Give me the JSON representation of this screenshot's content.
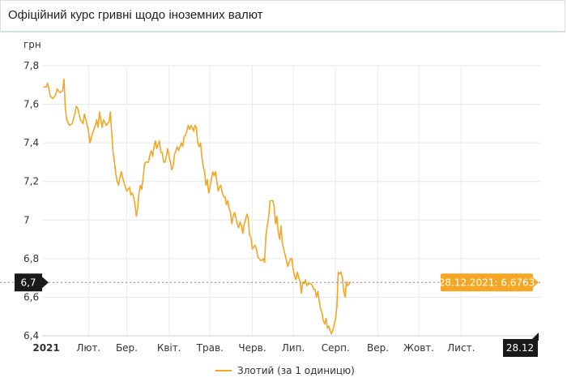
{
  "header": {
    "title": "Офіційний курс гривні щодо іноземних валют"
  },
  "colors": {
    "series": "#f5a623",
    "crosshair_label_bg": "#1a1a1a",
    "tooltip_bg": "#f5a623"
  },
  "chart_data": {
    "type": "line",
    "ylabel": "грн",
    "ylim": [
      6.4,
      7.8
    ],
    "yticks": [
      {
        "v": 7.8,
        "label": "7,8"
      },
      {
        "v": 7.6,
        "label": "7,6"
      },
      {
        "v": 7.4,
        "label": "7,4"
      },
      {
        "v": 7.2,
        "label": "7,2"
      },
      {
        "v": 7.0,
        "label": "7"
      },
      {
        "v": 6.8,
        "label": "6,8"
      },
      {
        "v": 6.6,
        "label": "6,6"
      },
      {
        "v": 6.4,
        "label": "6,4"
      }
    ],
    "xticks": [
      {
        "label": "2021",
        "day": 3,
        "bold": true
      },
      {
        "label": "Лют.",
        "day": 34
      },
      {
        "label": "Бер.",
        "day": 62
      },
      {
        "label": "Квіт.",
        "day": 93
      },
      {
        "label": "Трав.",
        "day": 123
      },
      {
        "label": "Черв.",
        "day": 154
      },
      {
        "label": "Лип.",
        "day": 184
      },
      {
        "label": "Серп.",
        "day": 215
      },
      {
        "label": "Вер.",
        "day": 246
      },
      {
        "label": "Жовт.",
        "day": 276
      },
      {
        "label": "Лист.",
        "day": 307
      }
    ],
    "x_end_day": 365,
    "grid": true,
    "legend": "bottom-center",
    "series": [
      {
        "name": "Злотий (за 1 одиницю)",
        "points": [
          [
            1,
            7.69
          ],
          [
            3,
            7.69
          ],
          [
            4,
            7.71
          ],
          [
            5,
            7.68
          ],
          [
            6,
            7.64
          ],
          [
            8,
            7.63
          ],
          [
            10,
            7.65
          ],
          [
            11,
            7.68
          ],
          [
            13,
            7.66
          ],
          [
            15,
            7.67
          ],
          [
            16,
            7.73
          ],
          [
            17,
            7.58
          ],
          [
            18,
            7.52
          ],
          [
            20,
            7.49
          ],
          [
            22,
            7.5
          ],
          [
            24,
            7.55
          ],
          [
            25,
            7.59
          ],
          [
            26,
            7.58
          ],
          [
            28,
            7.52
          ],
          [
            30,
            7.5
          ],
          [
            31,
            7.55
          ],
          [
            32,
            7.52
          ],
          [
            34,
            7.46
          ],
          [
            35,
            7.4
          ],
          [
            37,
            7.45
          ],
          [
            39,
            7.49
          ],
          [
            40,
            7.52
          ],
          [
            41,
            7.48
          ],
          [
            42,
            7.56
          ],
          [
            44,
            7.48
          ],
          [
            45,
            7.52
          ],
          [
            47,
            7.49
          ],
          [
            49,
            7.51
          ],
          [
            50,
            7.56
          ],
          [
            51,
            7.45
          ],
          [
            52,
            7.35
          ],
          [
            53,
            7.3
          ],
          [
            54,
            7.24
          ],
          [
            55,
            7.2
          ],
          [
            56,
            7.18
          ],
          [
            57,
            7.22
          ],
          [
            58,
            7.25
          ],
          [
            59,
            7.22
          ],
          [
            61,
            7.17
          ],
          [
            62,
            7.15
          ],
          [
            64,
            7.17
          ],
          [
            65,
            7.13
          ],
          [
            66,
            7.14
          ],
          [
            67,
            7.12
          ],
          [
            68,
            7.08
          ],
          [
            69,
            7.02
          ],
          [
            70,
            7.06
          ],
          [
            71,
            7.14
          ],
          [
            72,
            7.18
          ],
          [
            73,
            7.16
          ],
          [
            74,
            7.22
          ],
          [
            75,
            7.29
          ],
          [
            76,
            7.3
          ],
          [
            78,
            7.3
          ],
          [
            79,
            7.34
          ],
          [
            80,
            7.36
          ],
          [
            81,
            7.33
          ],
          [
            82,
            7.38
          ],
          [
            83,
            7.41
          ],
          [
            84,
            7.37
          ],
          [
            86,
            7.41
          ],
          [
            87,
            7.35
          ],
          [
            88,
            7.35
          ],
          [
            89,
            7.3
          ],
          [
            90,
            7.3
          ],
          [
            91,
            7.33
          ],
          [
            92,
            7.37
          ],
          [
            93,
            7.33
          ],
          [
            94,
            7.3
          ],
          [
            95,
            7.26
          ],
          [
            96,
            7.28
          ],
          [
            97,
            7.34
          ],
          [
            98,
            7.36
          ],
          [
            99,
            7.38
          ],
          [
            100,
            7.36
          ],
          [
            101,
            7.38
          ],
          [
            102,
            7.4
          ],
          [
            103,
            7.38
          ],
          [
            104,
            7.43
          ],
          [
            105,
            7.44
          ],
          [
            106,
            7.46
          ],
          [
            107,
            7.49
          ],
          [
            108,
            7.47
          ],
          [
            109,
            7.49
          ],
          [
            110,
            7.48
          ],
          [
            111,
            7.46
          ],
          [
            112,
            7.49
          ],
          [
            113,
            7.48
          ],
          [
            114,
            7.4
          ],
          [
            115,
            7.38
          ],
          [
            116,
            7.4
          ],
          [
            117,
            7.33
          ],
          [
            118,
            7.28
          ],
          [
            119,
            7.25
          ],
          [
            120,
            7.18
          ],
          [
            121,
            7.21
          ],
          [
            122,
            7.14
          ],
          [
            123,
            7.17
          ],
          [
            124,
            7.21
          ],
          [
            125,
            7.25
          ],
          [
            126,
            7.23
          ],
          [
            127,
            7.25
          ],
          [
            128,
            7.2
          ],
          [
            129,
            7.15
          ],
          [
            130,
            7.17
          ],
          [
            131,
            7.18
          ],
          [
            132,
            7.14
          ],
          [
            133,
            7.12
          ],
          [
            134,
            7.12
          ],
          [
            135,
            7.08
          ],
          [
            136,
            7.1
          ],
          [
            137,
            7.06
          ],
          [
            138,
            7.04
          ],
          [
            139,
            6.98
          ],
          [
            140,
            7.02
          ],
          [
            141,
            7.04
          ],
          [
            142,
            7.01
          ],
          [
            143,
            6.98
          ],
          [
            144,
            6.96
          ],
          [
            145,
            6.99
          ],
          [
            146,
            6.97
          ],
          [
            147,
            6.93
          ],
          [
            148,
            6.98
          ],
          [
            149,
            7.0
          ],
          [
            150,
            7.03
          ],
          [
            151,
            7.01
          ],
          [
            152,
            6.92
          ],
          [
            153,
            6.91
          ],
          [
            154,
            6.85
          ],
          [
            155,
            6.86
          ],
          [
            156,
            6.87
          ],
          [
            157,
            6.85
          ],
          [
            158,
            6.81
          ],
          [
            159,
            6.8
          ],
          [
            160,
            6.79
          ],
          [
            161,
            6.79
          ],
          [
            162,
            6.8
          ],
          [
            163,
            6.78
          ],
          [
            164,
            6.92
          ],
          [
            165,
            6.97
          ],
          [
            166,
            7.02
          ],
          [
            167,
            7.1
          ],
          [
            168,
            7.1
          ],
          [
            169,
            7.1
          ],
          [
            170,
            7.07
          ],
          [
            171,
            6.98
          ],
          [
            172,
            7.02
          ],
          [
            173,
            6.94
          ],
          [
            174,
            6.9
          ],
          [
            175,
            6.97
          ],
          [
            176,
            6.88
          ],
          [
            177,
            6.85
          ],
          [
            178,
            6.82
          ],
          [
            179,
            6.79
          ],
          [
            180,
            6.76
          ],
          [
            181,
            6.78
          ],
          [
            182,
            6.8
          ],
          [
            183,
            6.8
          ],
          [
            184,
            6.74
          ],
          [
            185,
            6.71
          ],
          [
            186,
            6.69
          ],
          [
            187,
            6.73
          ],
          [
            188,
            6.7
          ],
          [
            189,
            6.68
          ],
          [
            190,
            6.62
          ],
          [
            191,
            6.68
          ],
          [
            192,
            6.67
          ],
          [
            193,
            6.69
          ],
          [
            194,
            6.66
          ],
          [
            195,
            6.67
          ],
          [
            196,
            6.67
          ],
          [
            197,
            6.67
          ],
          [
            198,
            6.66
          ],
          [
            199,
            6.64
          ],
          [
            200,
            6.64
          ],
          [
            201,
            6.6
          ],
          [
            202,
            6.63
          ],
          [
            203,
            6.58
          ],
          [
            204,
            6.54
          ],
          [
            205,
            6.52
          ],
          [
            206,
            6.48
          ],
          [
            207,
            6.46
          ],
          [
            208,
            6.49
          ],
          [
            209,
            6.44
          ],
          [
            210,
            6.45
          ],
          [
            211,
            6.43
          ],
          [
            212,
            6.41
          ],
          [
            213,
            6.43
          ],
          [
            214,
            6.46
          ],
          [
            215,
            6.49
          ],
          [
            216,
            6.55
          ],
          [
            217,
            6.73
          ],
          [
            218,
            6.72
          ],
          [
            219,
            6.73
          ],
          [
            220,
            6.7
          ],
          [
            221,
            6.63
          ],
          [
            222,
            6.6
          ],
          [
            223,
            6.68
          ],
          [
            224,
            6.66
          ],
          [
            225,
            6.67
          ],
          [
            226,
            6.68
          ]
        ]
      }
    ],
    "crosshair": {
      "y_value": 6.6763,
      "y_label": "6,7",
      "x_label": "28.12"
    },
    "tooltip": "28.12.2021: 6,6763"
  }
}
